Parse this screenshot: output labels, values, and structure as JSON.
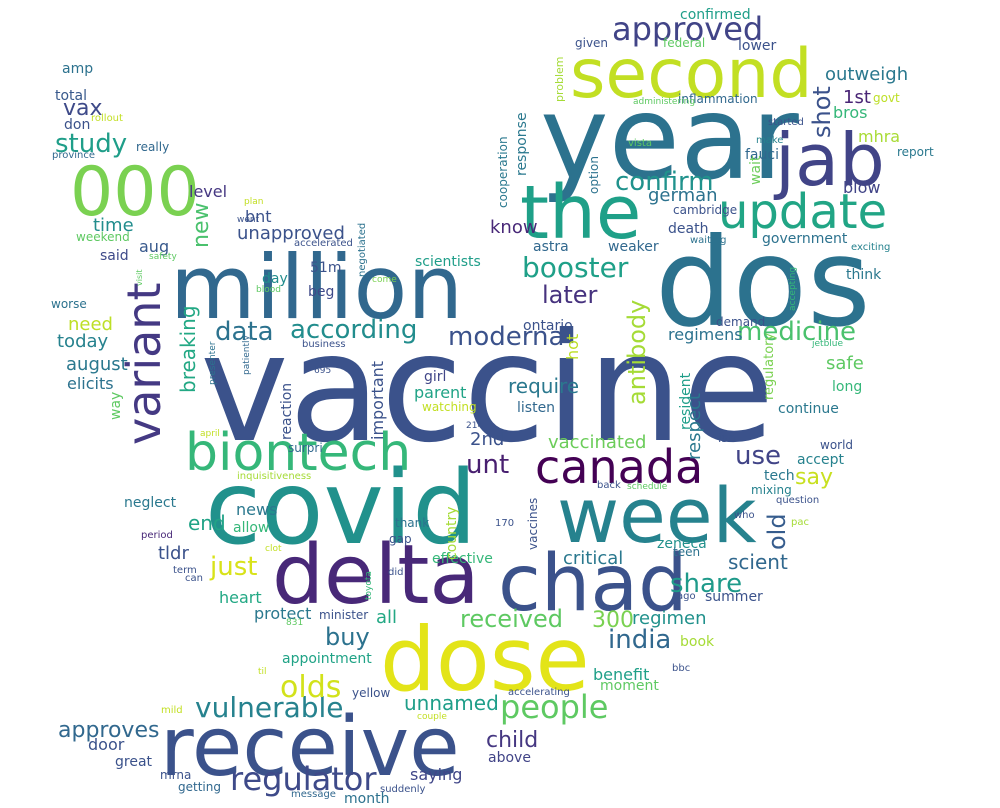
{
  "words": [
    {
      "t": "vaccine",
      "c": "#3b528b"
    },
    {
      "t": "covid",
      "c": "#21918c"
    },
    {
      "t": "dos",
      "c": "#2c728e"
    },
    {
      "t": "year",
      "c": "#2c728e"
    },
    {
      "t": "million",
      "c": "#31688e"
    },
    {
      "t": "dose",
      "c": "#e3e418"
    },
    {
      "t": "delta",
      "c": "#482878"
    },
    {
      "t": "receive",
      "c": "#3b528b"
    },
    {
      "t": "chad",
      "c": "#3b528b"
    },
    {
      "t": "week",
      "c": "#26828e"
    },
    {
      "t": "the",
      "c": "#1fa088"
    },
    {
      "t": "second",
      "c": "#c2df23"
    },
    {
      "t": "jab",
      "c": "#414487"
    },
    {
      "t": "000",
      "c": "#7ad151"
    },
    {
      "t": "biontech",
      "c": "#35b779"
    },
    {
      "t": "update",
      "c": "#21a585"
    },
    {
      "t": "variant",
      "c": "#443983"
    },
    {
      "t": "canada",
      "c": "#440154"
    },
    {
      "t": "approved",
      "c": "#414487"
    },
    {
      "t": "regulator",
      "c": "#3e4a89"
    },
    {
      "t": "people",
      "c": "#5ec962"
    },
    {
      "t": "vulnerable",
      "c": "#26828e"
    },
    {
      "t": "olds",
      "c": "#d2e21b"
    },
    {
      "t": "booster",
      "c": "#1fa088"
    },
    {
      "t": "according",
      "c": "#228d8d"
    },
    {
      "t": "data",
      "c": "#2c728e"
    },
    {
      "t": "medicine",
      "c": "#4ac16d"
    },
    {
      "t": "moderna",
      "c": "#3b528b"
    },
    {
      "t": "confirm",
      "c": "#20928c"
    },
    {
      "t": "study",
      "c": "#1f9e89"
    },
    {
      "t": "unt",
      "c": "#481f70"
    },
    {
      "t": "india",
      "c": "#31688e"
    },
    {
      "t": "use",
      "c": "#414487"
    },
    {
      "t": "share",
      "c": "#1f9a8a"
    },
    {
      "t": "received",
      "c": "#5ec962"
    },
    {
      "t": "antibody",
      "c": "#a5db36"
    },
    {
      "t": "later",
      "c": "#46327e"
    },
    {
      "t": "just",
      "c": "#d8e219"
    },
    {
      "t": "buy",
      "c": "#2c728e"
    },
    {
      "t": "approves",
      "c": "#31688e"
    },
    {
      "t": "child",
      "c": "#453781"
    },
    {
      "t": "unnamed",
      "c": "#1f9e89"
    },
    {
      "t": "shot",
      "c": "#3b528b"
    },
    {
      "t": "old",
      "c": "#365c8d"
    },
    {
      "t": "new",
      "c": "#4ac16d"
    },
    {
      "t": "vax",
      "c": "#3e4a89"
    },
    {
      "t": "require",
      "c": "#2a788e"
    },
    {
      "t": "breaking",
      "c": "#22a884"
    },
    {
      "t": "say",
      "c": "#c8e020"
    },
    {
      "t": "300",
      "c": "#7ad151"
    },
    {
      "t": "regimen",
      "c": "#21918c"
    },
    {
      "t": "scient",
      "c": "#31688e"
    },
    {
      "t": "vaccinated",
      "c": "#6ccd5a"
    },
    {
      "t": "critical",
      "c": "#2a788e"
    },
    {
      "t": "respect",
      "c": "#2a788e"
    },
    {
      "t": "outweigh",
      "c": "#2a788e"
    },
    {
      "t": "safe",
      "c": "#5ec962"
    },
    {
      "t": "end",
      "c": "#20a386"
    },
    {
      "t": "need",
      "c": "#bddf26"
    },
    {
      "t": "august",
      "c": "#2a788e"
    },
    {
      "t": "regimens",
      "c": "#2c728e"
    },
    {
      "t": "unapproved",
      "c": "#3b528b"
    },
    {
      "t": "important",
      "c": "#3b528b"
    },
    {
      "t": "confirmed",
      "c": "#1f9e89"
    },
    {
      "t": "1st",
      "c": "#482475"
    },
    {
      "t": "bros",
      "c": "#35b779"
    },
    {
      "t": "mhra",
      "c": "#a8db34"
    },
    {
      "t": "fauci",
      "c": "#31688e"
    },
    {
      "t": "blow",
      "c": "#414487"
    },
    {
      "t": "german",
      "c": "#2c728e"
    },
    {
      "t": "government",
      "c": "#2c728e"
    },
    {
      "t": "think",
      "c": "#2a788e"
    },
    {
      "t": "long",
      "c": "#35b779"
    },
    {
      "t": "continue",
      "c": "#2a788e"
    },
    {
      "t": "accept",
      "c": "#26828e"
    },
    {
      "t": "world",
      "c": "#3b528b"
    },
    {
      "t": "tech",
      "c": "#2a788e"
    },
    {
      "t": "mixing",
      "c": "#26828e"
    },
    {
      "t": "hot",
      "c": "#bddf26"
    },
    {
      "t": "resident",
      "c": "#1f9e89"
    },
    {
      "t": "regulatory",
      "c": "#7ad151"
    },
    {
      "t": "scientists",
      "c": "#1f9e89"
    },
    {
      "t": "ontario",
      "c": "#3b528b"
    },
    {
      "t": "parent",
      "c": "#20a386"
    },
    {
      "t": "girl",
      "c": "#404688"
    },
    {
      "t": "listen",
      "c": "#31688e"
    },
    {
      "t": "reaction",
      "c": "#3b528b"
    },
    {
      "t": "2nd",
      "c": "#3b528b"
    },
    {
      "t": "astra",
      "c": "#31688e"
    },
    {
      "t": "weaker",
      "c": "#31688e"
    },
    {
      "t": "death",
      "c": "#3b528b"
    },
    {
      "t": "know",
      "c": "#482878"
    },
    {
      "t": "response",
      "c": "#2a788e"
    },
    {
      "t": "cooperation",
      "c": "#2a788e"
    },
    {
      "t": "today",
      "c": "#26828e"
    },
    {
      "t": "elicits",
      "c": "#2c728e"
    },
    {
      "t": "time",
      "c": "#228d8d"
    },
    {
      "t": "level",
      "c": "#453781"
    },
    {
      "t": "bnt",
      "c": "#3b528b"
    },
    {
      "t": "aug",
      "c": "#38598c"
    },
    {
      "t": "said",
      "c": "#3e4a89"
    },
    {
      "t": "day",
      "c": "#228d8d"
    },
    {
      "t": "51m",
      "c": "#3b528b"
    },
    {
      "t": "beg",
      "c": "#3e4a89"
    },
    {
      "t": "amp",
      "c": "#2c728e"
    },
    {
      "t": "total",
      "c": "#38598c"
    },
    {
      "t": "don",
      "c": "#3b528b"
    },
    {
      "t": "really",
      "c": "#31688e"
    },
    {
      "t": "news",
      "c": "#2a788e"
    },
    {
      "t": "neglect",
      "c": "#2a788e"
    },
    {
      "t": "tldr",
      "c": "#3b528b"
    },
    {
      "t": "heart",
      "c": "#22a884"
    },
    {
      "t": "protect",
      "c": "#2a788e"
    },
    {
      "t": "appointment",
      "c": "#20a386"
    },
    {
      "t": "all",
      "c": "#22a884"
    },
    {
      "t": "minister",
      "c": "#3b528b"
    },
    {
      "t": "effective",
      "c": "#35b779"
    },
    {
      "t": "zeneca",
      "c": "#21918c"
    },
    {
      "t": "summer",
      "c": "#3b528b"
    },
    {
      "t": "benefit",
      "c": "#1fa088"
    },
    {
      "t": "moment",
      "c": "#5ec962"
    },
    {
      "t": "book",
      "c": "#a5db36"
    },
    {
      "t": "door",
      "c": "#3b528b"
    },
    {
      "t": "great",
      "c": "#3b528b"
    },
    {
      "t": "mrna",
      "c": "#3b528b"
    },
    {
      "t": "saying",
      "c": "#404688"
    },
    {
      "t": "above",
      "c": "#414487"
    },
    {
      "t": "month",
      "c": "#2c728e"
    },
    {
      "t": "getting",
      "c": "#31688e"
    },
    {
      "t": "message",
      "c": "#31688e"
    },
    {
      "t": "suddenly",
      "c": "#3b528b"
    },
    {
      "t": "yellow",
      "c": "#3b528b"
    },
    {
      "t": "country",
      "c": "#a5db36"
    },
    {
      "t": "vaccines",
      "c": "#3b528b"
    },
    {
      "t": "thank",
      "c": "#2c728e"
    },
    {
      "t": "gap",
      "c": "#3b528b"
    },
    {
      "t": "allow",
      "c": "#35b779"
    },
    {
      "t": "watching",
      "c": "#c2df23"
    },
    {
      "t": "isn",
      "c": "#3b528b"
    },
    {
      "t": "way",
      "c": "#5ec962"
    },
    {
      "t": "wait",
      "c": "#6ccd5a"
    },
    {
      "t": "lower",
      "c": "#3b528b"
    },
    {
      "t": "given",
      "c": "#3b528b"
    },
    {
      "t": "federal",
      "c": "#5ec962"
    },
    {
      "t": "govt",
      "c": "#bddf26"
    },
    {
      "t": "inflammation",
      "c": "#31688e"
    },
    {
      "t": "administering",
      "c": "#5ec962"
    },
    {
      "t": "problem",
      "c": "#a5db36"
    },
    {
      "t": "option",
      "c": "#2c728e"
    },
    {
      "t": "vista",
      "c": "#5ec962"
    },
    {
      "t": "started",
      "c": "#3b528b"
    },
    {
      "t": "make",
      "c": "#26828e"
    },
    {
      "t": "report",
      "c": "#2a788e"
    },
    {
      "t": "cambridge",
      "c": "#3b528b"
    },
    {
      "t": "waiting",
      "c": "#2c728e"
    },
    {
      "t": "exciting",
      "c": "#26828e"
    },
    {
      "t": "accepting",
      "c": "#35b779"
    },
    {
      "t": "demand",
      "c": "#3b528b"
    },
    {
      "t": "jetblue",
      "c": "#35b779"
    },
    {
      "t": "business",
      "c": "#3b528b"
    },
    {
      "t": "negotiated",
      "c": "#2c728e"
    },
    {
      "t": "come",
      "c": "#7ad151"
    },
    {
      "t": "blood",
      "c": "#5ec962"
    },
    {
      "t": "accelerated",
      "c": "#3b528b"
    },
    {
      "t": "went",
      "c": "#3b528b"
    },
    {
      "t": "plan",
      "c": "#c2df23"
    },
    {
      "t": "visit",
      "c": "#5ec962"
    },
    {
      "t": "safety",
      "c": "#5ec962"
    },
    {
      "t": "weekend",
      "c": "#5ec962"
    },
    {
      "t": "worse",
      "c": "#2c728e"
    },
    {
      "t": "province",
      "c": "#31688e"
    },
    {
      "t": "rollout",
      "c": "#c2df23"
    },
    {
      "t": "presenter",
      "c": "#2c728e"
    },
    {
      "t": "patiently",
      "c": "#31688e"
    },
    {
      "t": "695",
      "c": "#3b528b"
    },
    {
      "t": "april",
      "c": "#c2df23"
    },
    {
      "t": "214",
      "c": "#3b528b"
    },
    {
      "t": "surpri",
      "c": "#31688e"
    },
    {
      "t": "inquisitiveness",
      "c": "#a5db36"
    },
    {
      "t": "back",
      "c": "#3b528b"
    },
    {
      "t": "schedule",
      "c": "#5ec962"
    },
    {
      "t": "170",
      "c": "#3b528b"
    },
    {
      "t": "question",
      "c": "#3b528b"
    },
    {
      "t": "pac",
      "c": "#a5db36"
    },
    {
      "t": "who",
      "c": "#3b528b"
    },
    {
      "t": "teen",
      "c": "#2c728e"
    },
    {
      "t": "ago",
      "c": "#3b528b"
    },
    {
      "t": "period",
      "c": "#482878"
    },
    {
      "t": "term",
      "c": "#3b528b"
    },
    {
      "t": "can",
      "c": "#3b528b"
    },
    {
      "t": "clot",
      "c": "#c2df23"
    },
    {
      "t": "toyota",
      "c": "#35b779"
    },
    {
      "t": "did",
      "c": "#3b528b"
    },
    {
      "t": "831",
      "c": "#5ec962"
    },
    {
      "t": "til",
      "c": "#c2df23"
    },
    {
      "t": "mild",
      "c": "#c2df23"
    },
    {
      "t": "accelerating",
      "c": "#3b528b"
    },
    {
      "t": "couple",
      "c": "#c2df23"
    },
    {
      "t": "bbc",
      "c": "#3b528b"
    }
  ]
}
